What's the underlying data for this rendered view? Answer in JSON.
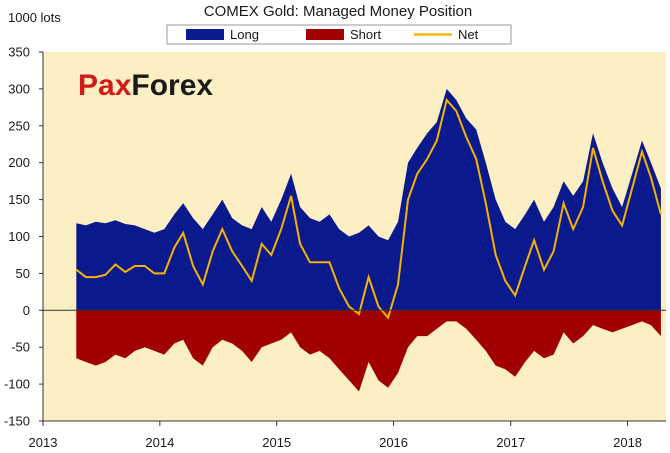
{
  "chart_data": {
    "type": "area",
    "title": "COMEX Gold: Managed Money Position",
    "ylabel": "1000 lots",
    "xlabel": "",
    "ylim": [
      -150,
      350
    ],
    "xlim": [
      "2013-01-01",
      "2018-05-01"
    ],
    "y_ticks": [
      "350",
      "300",
      "250",
      "200",
      "150",
      "100",
      "50",
      "0",
      "-50",
      "-100",
      "-150"
    ],
    "x_ticks": [
      "2013",
      "2014",
      "2015",
      "2016",
      "2017",
      "2018"
    ],
    "grid": false,
    "legend_position": "top",
    "watermark": "PaxForex",
    "colors": {
      "long": "#0a1a8c",
      "short": "#a10000",
      "net": "#f5b301",
      "background": "#fbefc3"
    },
    "x": [
      "2013-04",
      "2013-05",
      "2013-06",
      "2013-07",
      "2013-08",
      "2013-09",
      "2013-10",
      "2013-11",
      "2013-12",
      "2014-01",
      "2014-02",
      "2014-03",
      "2014-04",
      "2014-05",
      "2014-06",
      "2014-07",
      "2014-08",
      "2014-09",
      "2014-10",
      "2014-11",
      "2014-12",
      "2015-01",
      "2015-02",
      "2015-03",
      "2015-04",
      "2015-05",
      "2015-06",
      "2015-07",
      "2015-08",
      "2015-09",
      "2015-10",
      "2015-11",
      "2015-12",
      "2016-01",
      "2016-02",
      "2016-03",
      "2016-04",
      "2016-05",
      "2016-06",
      "2016-07",
      "2016-08",
      "2016-09",
      "2016-10",
      "2016-11",
      "2016-12",
      "2017-01",
      "2017-02",
      "2017-03",
      "2017-04",
      "2017-05",
      "2017-06",
      "2017-07",
      "2017-08",
      "2017-09",
      "2017-10",
      "2017-11",
      "2017-12",
      "2018-01",
      "2018-02",
      "2018-03",
      "2018-04"
    ],
    "series": [
      {
        "name": "Long",
        "values": [
          118,
          115,
          120,
          118,
          122,
          117,
          115,
          110,
          105,
          110,
          130,
          145,
          125,
          110,
          130,
          150,
          125,
          115,
          110,
          140,
          120,
          150,
          185,
          140,
          125,
          120,
          130,
          110,
          100,
          105,
          115,
          100,
          95,
          120,
          200,
          220,
          240,
          255,
          300,
          285,
          260,
          245,
          200,
          150,
          120,
          110,
          130,
          150,
          120,
          140,
          175,
          155,
          175,
          240,
          200,
          165,
          140,
          185,
          230,
          200,
          165
        ]
      },
      {
        "name": "Short",
        "values": [
          -65,
          -70,
          -75,
          -70,
          -60,
          -65,
          -55,
          -50,
          -55,
          -60,
          -45,
          -40,
          -65,
          -75,
          -50,
          -40,
          -45,
          -55,
          -70,
          -50,
          -45,
          -40,
          -30,
          -50,
          -60,
          -55,
          -65,
          -80,
          -95,
          -110,
          -70,
          -95,
          -105,
          -85,
          -50,
          -35,
          -35,
          -25,
          -15,
          -15,
          -25,
          -40,
          -55,
          -75,
          -80,
          -90,
          -70,
          -55,
          -65,
          -60,
          -30,
          -45,
          -35,
          -20,
          -25,
          -30,
          -25,
          -20,
          -15,
          -20,
          -35
        ]
      },
      {
        "name": "Net",
        "values": [
          55,
          45,
          45,
          48,
          62,
          52,
          60,
          60,
          50,
          50,
          85,
          105,
          60,
          35,
          80,
          110,
          80,
          60,
          40,
          90,
          75,
          110,
          155,
          90,
          65,
          65,
          65,
          30,
          5,
          -5,
          45,
          5,
          -10,
          35,
          150,
          185,
          205,
          230,
          285,
          270,
          235,
          205,
          145,
          75,
          40,
          20,
          60,
          95,
          55,
          80,
          145,
          110,
          140,
          220,
          175,
          135,
          115,
          165,
          215,
          180,
          130
        ]
      }
    ]
  }
}
